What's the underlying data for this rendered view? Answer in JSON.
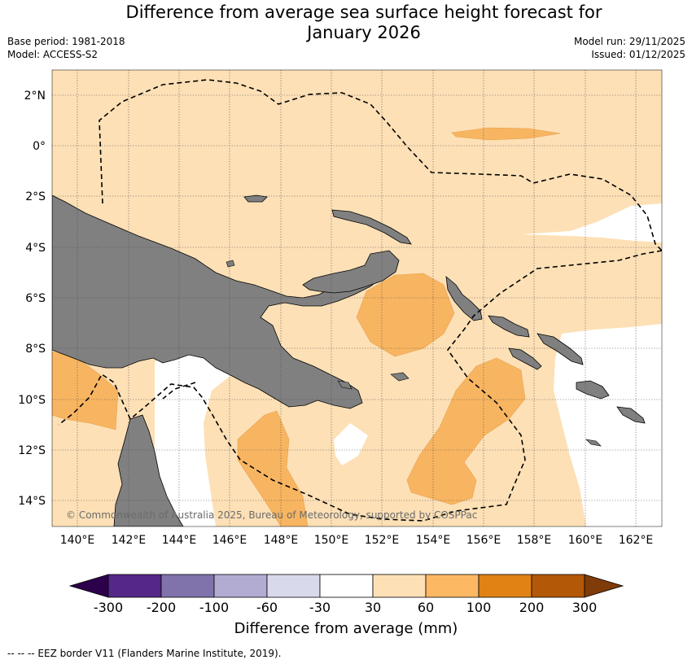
{
  "title": {
    "line1": "Difference from average sea surface height forecast for",
    "line2": "January 2026"
  },
  "meta": {
    "base_period": "Base period: 1981-2018",
    "model": "Model: ACCESS-S2",
    "model_run": "Model run: 29/11/2025",
    "issued": "Issued: 01/12/2025"
  },
  "map": {
    "copyright": "© Commonwealth of Australia 2025, Bureau of Meteorology, supported by COSPPac",
    "lon_ticks": [
      "140°E",
      "142°E",
      "144°E",
      "146°E",
      "148°E",
      "150°E",
      "152°E",
      "154°E",
      "156°E",
      "158°E",
      "160°E",
      "162°E"
    ],
    "lat_ticks": [
      "2°N",
      "0°",
      "2°S",
      "4°S",
      "6°S",
      "8°S",
      "10°S",
      "12°S",
      "14°S"
    ],
    "colors": {
      "land": "#808080",
      "band_30_60": "#fde0b6",
      "band_60_100": "#f8b561"
    }
  },
  "colorbar": {
    "title": "Difference from average (mm)",
    "ticks": [
      "-300",
      "-200",
      "-100",
      "-60",
      "-30",
      "30",
      "60",
      "100",
      "200",
      "300"
    ],
    "colors": [
      "#2d004b",
      "#542788",
      "#8073ac",
      "#b2abd2",
      "#d8daeb",
      "#ffffff",
      "#fee0b6",
      "#fdb863",
      "#e08214",
      "#b35806",
      "#7f3b08"
    ]
  },
  "footer": {
    "legend": "--  --  -- EEZ border V11 (Flanders Marine Institute, 2019)."
  }
}
